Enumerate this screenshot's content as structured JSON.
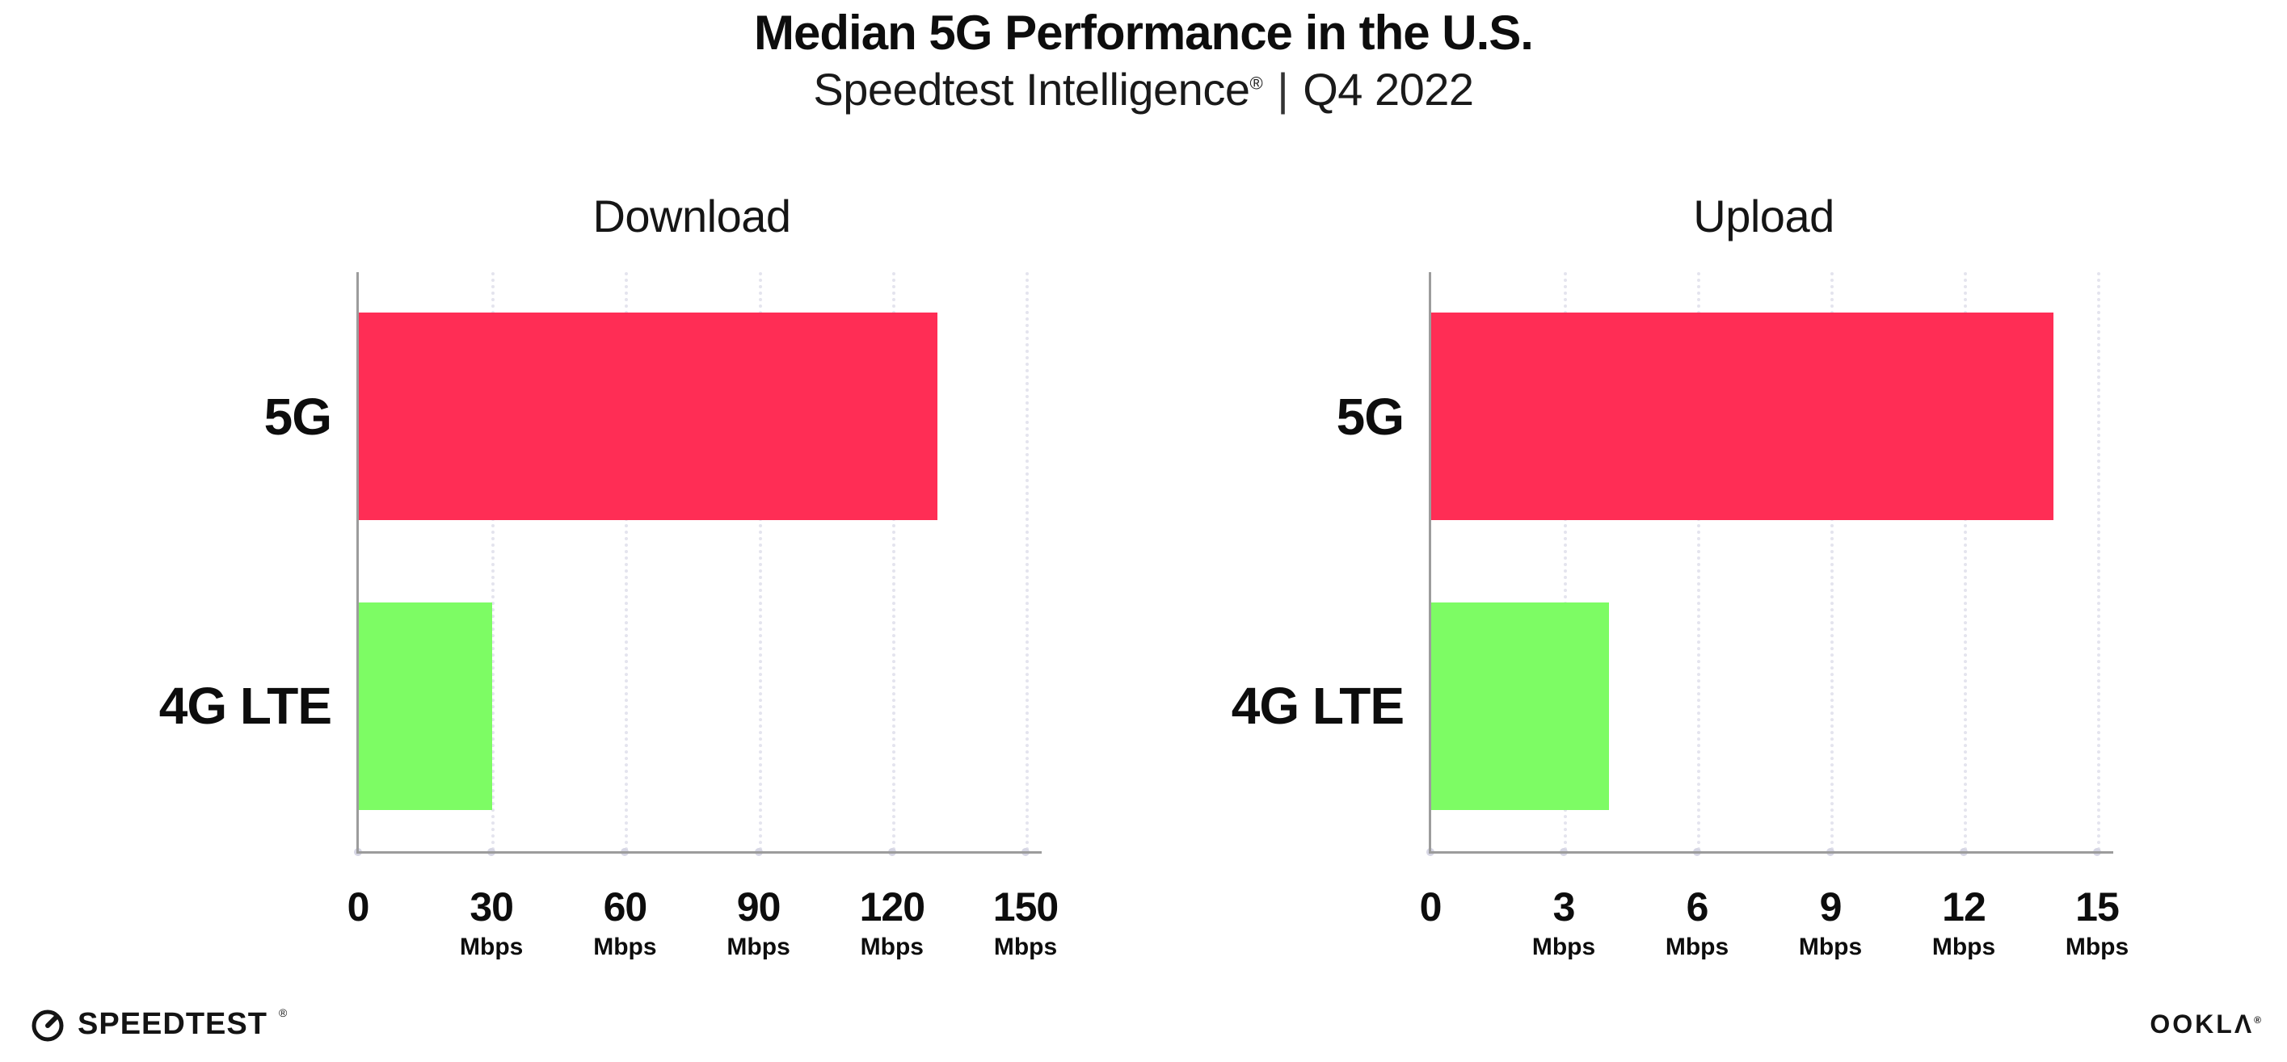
{
  "header": {
    "title": "Median 5G Performance in the U.S.",
    "subtitle_brand": "Speedtest Intelligence",
    "subtitle_reg": "®",
    "subtitle_sep": "|",
    "subtitle_period": "Q4 2022"
  },
  "footer": {
    "speedtest_wordmark": "SPEEDTEST",
    "speedtest_mark": "®",
    "ookla_wordmark": "OOKLΛ",
    "ookla_mark": "®"
  },
  "colors": {
    "bar_5g": "#ff2d55",
    "bar_4g_lte": "#7dfc64",
    "axis": "#9c9c9c",
    "gridline": "#e4e4ee",
    "tick_dot": "#d6d6e4",
    "text": "#111111"
  },
  "chart_data": [
    {
      "type": "bar",
      "orientation": "horizontal",
      "title": "Download",
      "categories": [
        "5G",
        "4G LTE"
      ],
      "values": [
        130,
        30
      ],
      "unit": "Mbps",
      "xlim": [
        0,
        150
      ],
      "xticks": [
        0,
        30,
        60,
        90,
        120,
        150
      ],
      "grid": "vertical-dotted",
      "legend": "none"
    },
    {
      "type": "bar",
      "orientation": "horizontal",
      "title": "Upload",
      "categories": [
        "5G",
        "4G LTE"
      ],
      "values": [
        14,
        4
      ],
      "unit": "Mbps",
      "xlim": [
        0,
        15
      ],
      "xticks": [
        0,
        3,
        6,
        9,
        12,
        15
      ],
      "grid": "vertical-dotted",
      "legend": "none"
    }
  ]
}
